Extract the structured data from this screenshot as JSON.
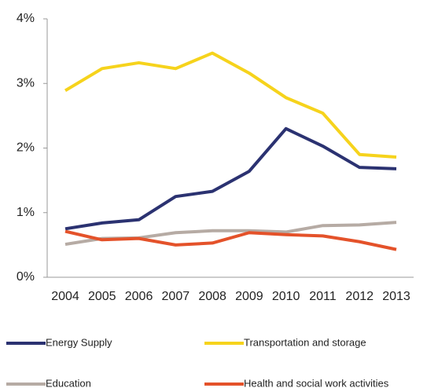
{
  "chart_data": {
    "type": "line",
    "categories": [
      "2004",
      "2005",
      "2006",
      "2007",
      "2008",
      "2009",
      "2010",
      "2011",
      "2012",
      "2013"
    ],
    "series": [
      {
        "name": "Energy Supply",
        "color": "#2b3271",
        "values": [
          0.75,
          0.84,
          0.89,
          1.25,
          1.33,
          1.64,
          2.3,
          2.03,
          1.7,
          1.68
        ]
      },
      {
        "name": "Transportation and storage",
        "color": "#f6d31c",
        "values": [
          2.89,
          3.23,
          3.32,
          3.23,
          3.47,
          3.16,
          2.78,
          2.54,
          1.9,
          1.86
        ]
      },
      {
        "name": "Education",
        "color": "#b6aba4",
        "values": [
          0.51,
          0.6,
          0.61,
          0.69,
          0.72,
          0.72,
          0.7,
          0.8,
          0.81,
          0.85
        ]
      },
      {
        "name": "Health and social work activities",
        "color": "#e4522a",
        "values": [
          0.71,
          0.58,
          0.6,
          0.5,
          0.53,
          0.69,
          0.66,
          0.64,
          0.55,
          0.43
        ]
      }
    ],
    "ylim": [
      0,
      4
    ],
    "yticks": [
      {
        "value": 0,
        "label": "0%"
      },
      {
        "value": 1,
        "label": "1%"
      },
      {
        "value": 2,
        "label": "2%"
      },
      {
        "value": 3,
        "label": "3%"
      },
      {
        "value": 4,
        "label": "4%"
      }
    ],
    "grid": false,
    "legend": "bottom"
  }
}
